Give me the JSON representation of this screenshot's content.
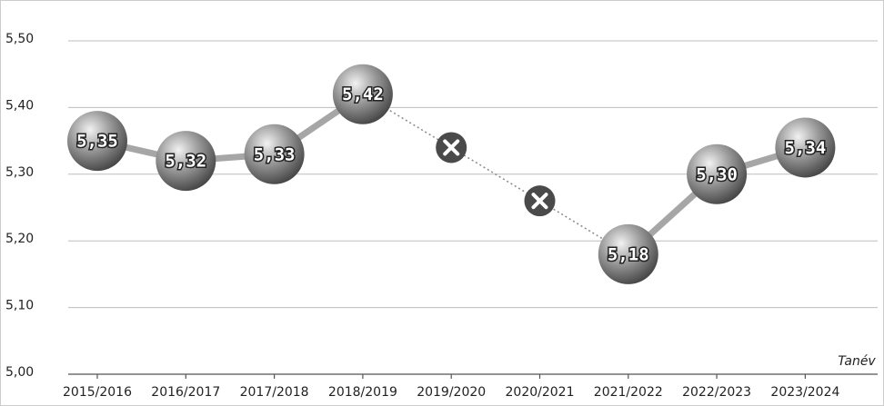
{
  "chart_data": {
    "type": "line",
    "x_label": "Tanév",
    "categories": [
      "2015/2016",
      "2016/2017",
      "2017/2018",
      "2018/2019",
      "2019/2020",
      "2020/2021",
      "2021/2022",
      "2022/2023",
      "2023/2024"
    ],
    "values": [
      5.35,
      5.32,
      5.33,
      5.42,
      null,
      null,
      5.18,
      5.3,
      5.34
    ],
    "value_labels": [
      "5,35",
      "5,32",
      "5,33",
      "5,42",
      null,
      null,
      "5,18",
      "5,30",
      "5,34"
    ],
    "color": "#a6a6a6",
    "ylim": [
      5.0,
      5.5
    ],
    "yticks": [
      {
        "value": 5.0,
        "label": "5,00"
      },
      {
        "value": 5.1,
        "label": "5,10"
      },
      {
        "value": 5.2,
        "label": "5,20"
      },
      {
        "value": 5.3,
        "label": "5,30"
      },
      {
        "value": 5.4,
        "label": "5,40"
      },
      {
        "value": 5.5,
        "label": "5,50"
      }
    ],
    "grid": true
  }
}
